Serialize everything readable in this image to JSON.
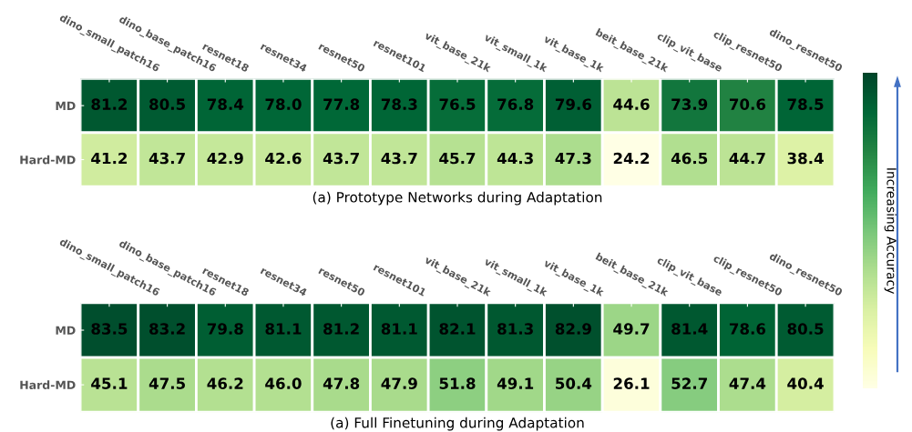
{
  "chart_data": [
    {
      "type": "heatmap",
      "xlabel": "(a) Prototype Networks during Adaptation",
      "clabel": "Increasing Accuracy",
      "categories": [
        "dino_small_patch16",
        "dino_base_patch16",
        "resnet18",
        "resnet34",
        "resnet50",
        "resnet101",
        "vit_base_21k",
        "vit_small_1k",
        "vit_base_1k",
        "beit_base_21k",
        "clip_vit_base",
        "clip_resnet50",
        "dino_resnet50"
      ],
      "y_categories": [
        "MD",
        "Hard-MD"
      ],
      "cells": [
        [
          81.2,
          80.5,
          78.4,
          78.0,
          77.8,
          78.3,
          76.5,
          76.8,
          79.6,
          44.6,
          73.9,
          70.6,
          78.5
        ],
        [
          41.2,
          43.7,
          42.9,
          42.6,
          43.7,
          43.7,
          45.7,
          44.3,
          47.3,
          24.2,
          46.5,
          44.7,
          38.4
        ]
      ],
      "cell_labels": [
        [
          "81.2",
          "80.5",
          "78.4",
          "78.0",
          "77.8",
          "78.3",
          "76.5",
          "76.8",
          "79.6",
          "44.6",
          "73.9",
          "70.6",
          "78.5"
        ],
        [
          "41.2",
          "43.7",
          "42.9",
          "42.6",
          "43.7",
          "43.7",
          "45.7",
          "44.3",
          "47.3",
          "24.2",
          "46.5",
          "44.7",
          "38.4"
        ]
      ]
    },
    {
      "type": "heatmap",
      "xlabel": "(a) Full Finetuning during Adaptation",
      "categories": [
        "dino_small_patch16",
        "dino_base_patch16",
        "resnet18",
        "resnet34",
        "resnet50",
        "resnet101",
        "vit_base_21k",
        "vit_small_1k",
        "vit_base_1k",
        "beit_base_21k",
        "clip_vit_base",
        "clip_resnet50",
        "dino_resnet50"
      ],
      "y_categories": [
        "MD",
        "Hard-MD"
      ],
      "cells": [
        [
          83.5,
          83.2,
          79.8,
          81.1,
          81.2,
          81.1,
          82.1,
          81.3,
          82.9,
          49.7,
          81.4,
          78.6,
          80.5
        ],
        [
          45.1,
          47.5,
          46.2,
          46.0,
          47.8,
          47.9,
          51.8,
          49.1,
          50.4,
          26.1,
          52.7,
          47.4,
          40.4
        ]
      ],
      "cell_labels": [
        [
          "83.5",
          "83.2",
          "79.8",
          "81.1",
          "81.2",
          "81.1",
          "82.1",
          "81.3",
          "82.9",
          "49.7",
          "81.4",
          "78.6",
          "80.5"
        ],
        [
          "45.1",
          "47.5",
          "46.2",
          "46.0",
          "47.8",
          "47.9",
          "51.8",
          "49.1",
          "50.4",
          "26.1",
          "52.7",
          "47.4",
          "40.4"
        ]
      ]
    }
  ]
}
